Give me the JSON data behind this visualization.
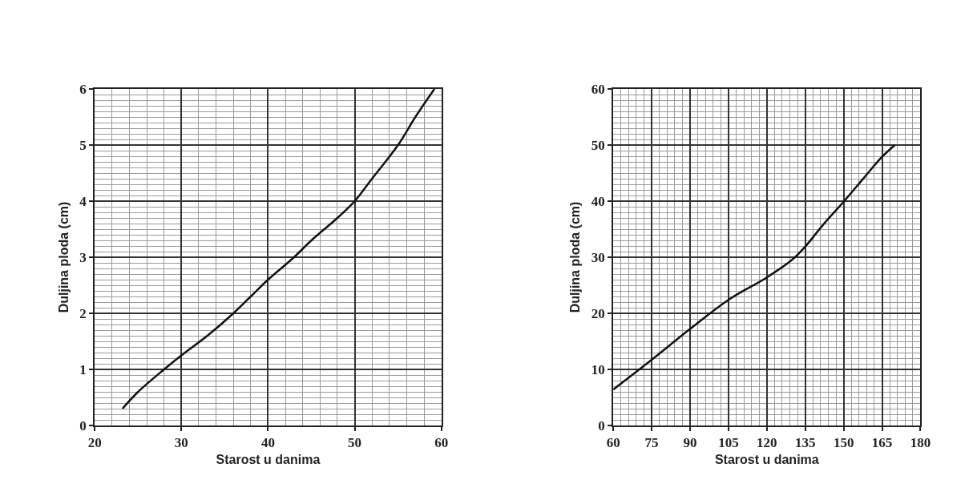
{
  "chart_data": [
    {
      "type": "line",
      "xlabel": "Starost u danima",
      "ylabel": "Duljina ploda (cm)",
      "xlim": [
        20,
        60
      ],
      "ylim": [
        0,
        6
      ],
      "xticks": [
        20,
        30,
        40,
        50,
        60
      ],
      "yticks": [
        0,
        1,
        2,
        3,
        4,
        5,
        6
      ],
      "grid": true,
      "series": [
        {
          "color": "#111111",
          "x": [
            23.2,
            25,
            28,
            30,
            33,
            36,
            38,
            40,
            43,
            45,
            48,
            50,
            52,
            55,
            57,
            59.2
          ],
          "values": [
            0.3,
            0.6,
            1.0,
            1.25,
            1.6,
            2.0,
            2.3,
            2.6,
            3.0,
            3.3,
            3.7,
            4.0,
            4.4,
            5.0,
            5.5,
            6.0
          ]
        }
      ]
    },
    {
      "type": "line",
      "xlabel": "Starost u danima",
      "ylabel": "Duljina ploda (cm)",
      "xlim": [
        60,
        180
      ],
      "ylim": [
        0,
        60
      ],
      "xticks": [
        60,
        75,
        90,
        105,
        120,
        135,
        150,
        165,
        180
      ],
      "yticks": [
        0,
        10,
        20,
        30,
        40,
        50,
        60
      ],
      "grid": true,
      "series": [
        {
          "color": "#111111",
          "x": [
            60,
            75,
            90,
            105,
            120,
            130,
            135,
            142,
            150,
            158,
            165,
            170
          ],
          "values": [
            6.4,
            11.7,
            17.2,
            22.4,
            26.4,
            29.6,
            31.9,
            35.8,
            39.9,
            44.2,
            47.9,
            50
          ]
        }
      ]
    }
  ]
}
